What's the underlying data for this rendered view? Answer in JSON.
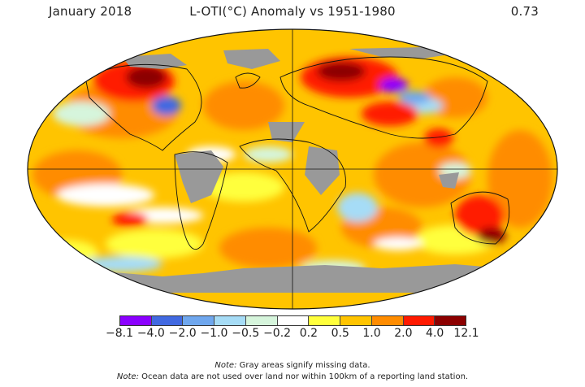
{
  "header": {
    "period": "January 2018",
    "title": "L-OTI(°C) Anomaly vs 1951-1980",
    "global_mean": "0.73"
  },
  "legend": {
    "colors": [
      "#8b00ff",
      "#4169e1",
      "#6fa7ee",
      "#a6dcf6",
      "#d6f5dc",
      "#ffffff",
      "#ffff3c",
      "#ffc400",
      "#ff8c00",
      "#ff1a00",
      "#8c0000"
    ],
    "tick_labels": [
      "−8.1",
      "−4.0",
      "−2.0",
      "−1.0",
      "−0.5",
      "−0.2",
      "0.2",
      "0.5",
      "1.0",
      "2.0",
      "4.0",
      "12.1"
    ]
  },
  "notes": [
    {
      "label": "Note:",
      "text": " Gray areas signify missing data."
    },
    {
      "label": "Note:",
      "text": " Ocean data are not used over land nor within 100km of a reporting land station."
    }
  ]
}
